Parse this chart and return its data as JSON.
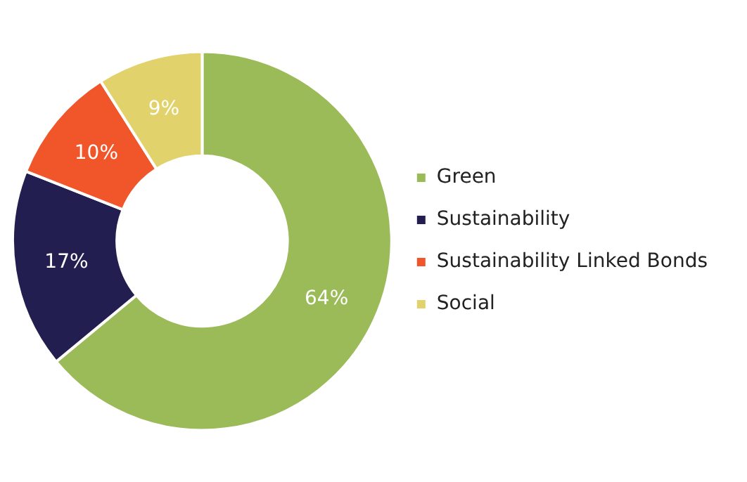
{
  "chart_data": {
    "type": "donut",
    "categories": [
      "Green",
      "Sustainability",
      "Sustainability Linked Bonds",
      "Social"
    ],
    "values": [
      64,
      17,
      10,
      9
    ],
    "colors": [
      "#9bbb59",
      "#221e50",
      "#f0562a",
      "#e2d26b"
    ],
    "value_labels": [
      "64%",
      "17%",
      "10%",
      "9%"
    ],
    "legend": "right"
  }
}
